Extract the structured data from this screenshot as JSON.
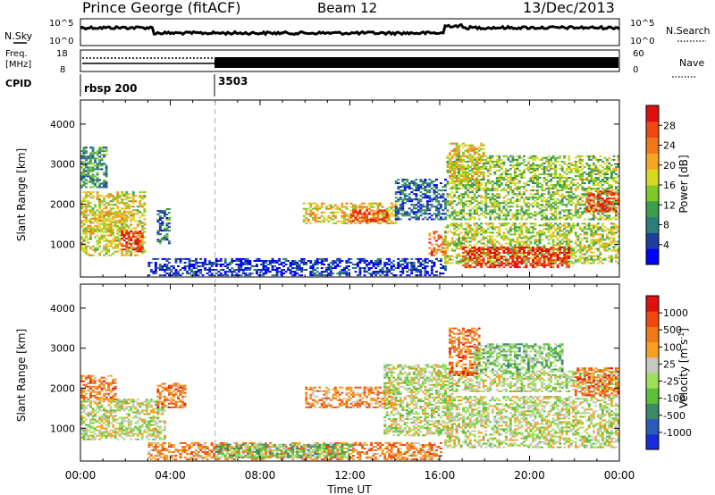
{
  "header": {
    "station": "Prince George (fitACF)",
    "beam": "Beam 12",
    "date": "13/Dec/2013"
  },
  "top_panels": {
    "nsky_label": "N.Sky",
    "nsky_ticks": [
      "10^5",
      "10^0"
    ],
    "nsearch_label": "N.Search",
    "freq_label_line1": "Freq.",
    "freq_label_line2": "[MHz]",
    "freq_ticks": [
      "18",
      "8"
    ],
    "nave_ticks": [
      "60",
      "0"
    ],
    "nave_label": "Nave",
    "cpid_label": "CPID",
    "cpid_segments": [
      {
        "start_hour": 0,
        "label": "rbsp 200"
      },
      {
        "start_hour": 6,
        "label": "3503"
      }
    ]
  },
  "colors": {
    "power": [
      "#0000ff",
      "#1e3ea0",
      "#2e7d7d",
      "#3c9e4a",
      "#7ec828",
      "#d8d820",
      "#f5a623",
      "#f07818",
      "#ee4a10",
      "#e01010"
    ],
    "velocity": [
      "#1a2bd9",
      "#2a5bb8",
      "#3a8a6a",
      "#5cc038",
      "#9ee05a",
      "#c8c8c0",
      "#f5a020",
      "#f07818",
      "#ee4a10",
      "#e01010"
    ]
  },
  "chart_data": [
    {
      "type": "heatmap",
      "title": "",
      "xlabel": "",
      "ylabel": "Slant Range [km]",
      "x_range_hours": [
        0,
        24
      ],
      "ylim": [
        180,
        4600
      ],
      "y_ticks": [
        1000,
        2000,
        3000,
        4000
      ],
      "colorbar": {
        "label": "Power [dB]",
        "range": [
          0,
          32
        ],
        "ticks": [
          4,
          8,
          12,
          16,
          20,
          24,
          28
        ]
      },
      "regions": [
        {
          "t0": 0.0,
          "t1": 2.9,
          "r0": 700,
          "r1": 2300,
          "level": 0.55
        },
        {
          "t0": 1.8,
          "t1": 2.8,
          "r0": 800,
          "r1": 1300,
          "level": 0.92
        },
        {
          "t0": 0.1,
          "t1": 2.0,
          "r0": 1300,
          "r1": 1800,
          "level": 0.6
        },
        {
          "t0": 0.0,
          "t1": 1.2,
          "r0": 2400,
          "r1": 3400,
          "level": 0.3
        },
        {
          "t0": 3.4,
          "t1": 4.0,
          "r0": 1000,
          "r1": 1900,
          "level": 0.25
        },
        {
          "t0": 3.0,
          "t1": 16.2,
          "r0": 200,
          "r1": 650,
          "level": 0.12
        },
        {
          "t0": 9.9,
          "t1": 14.0,
          "r0": 1500,
          "r1": 2000,
          "level": 0.6
        },
        {
          "t0": 12.0,
          "t1": 13.6,
          "r0": 1550,
          "r1": 1850,
          "level": 0.85
        },
        {
          "t0": 14.0,
          "t1": 16.2,
          "r0": 1600,
          "r1": 2600,
          "level": 0.2
        },
        {
          "t0": 15.5,
          "t1": 16.3,
          "r0": 700,
          "r1": 1300,
          "level": 0.8
        },
        {
          "t0": 16.2,
          "t1": 24.0,
          "r0": 500,
          "r1": 1500,
          "level": 0.5
        },
        {
          "t0": 17.0,
          "t1": 21.8,
          "r0": 400,
          "r1": 900,
          "level": 0.92
        },
        {
          "t0": 16.3,
          "t1": 24.0,
          "r0": 1600,
          "r1": 3200,
          "level": 0.45
        },
        {
          "t0": 22.5,
          "t1": 24.0,
          "r0": 1800,
          "r1": 2300,
          "level": 0.9
        },
        {
          "t0": 16.4,
          "t1": 18.0,
          "r0": 2500,
          "r1": 3500,
          "level": 0.6
        }
      ]
    },
    {
      "type": "heatmap",
      "title": "",
      "xlabel": "Time UT",
      "ylabel": "Slant Range [km]",
      "x_range_hours": [
        0,
        24
      ],
      "x_ticks": [
        "00:00",
        "04:00",
        "08:00",
        "12:00",
        "16:00",
        "20:00",
        "00:00"
      ],
      "ylim": [
        180,
        4600
      ],
      "y_ticks": [
        1000,
        2000,
        3000,
        4000
      ],
      "colorbar": {
        "label": "Velocity [m s^-1]",
        "ticks": [
          "1000",
          "500",
          "100",
          "25",
          "-25",
          "-100",
          "-500",
          "-1000"
        ]
      },
      "regions": [
        {
          "t0": 0.0,
          "t1": 3.8,
          "r0": 700,
          "r1": 1700,
          "level": 0.5
        },
        {
          "t0": 0.0,
          "t1": 1.6,
          "r0": 1700,
          "r1": 2300,
          "level": 0.75
        },
        {
          "t0": 3.4,
          "t1": 4.6,
          "r0": 1500,
          "r1": 2100,
          "level": 0.75
        },
        {
          "t0": 3.0,
          "t1": 16.0,
          "r0": 200,
          "r1": 650,
          "level": 0.72
        },
        {
          "t0": 6.0,
          "t1": 12.0,
          "r0": 250,
          "r1": 600,
          "level": 0.38
        },
        {
          "t0": 10.0,
          "t1": 14.0,
          "r0": 1500,
          "r1": 2000,
          "level": 0.7
        },
        {
          "t0": 13.5,
          "t1": 16.5,
          "r0": 800,
          "r1": 2600,
          "level": 0.5
        },
        {
          "t0": 16.2,
          "t1": 24.0,
          "r0": 500,
          "r1": 1800,
          "level": 0.5
        },
        {
          "t0": 16.5,
          "t1": 24.0,
          "r0": 1900,
          "r1": 2400,
          "level": 0.5
        },
        {
          "t0": 16.4,
          "t1": 17.8,
          "r0": 2300,
          "r1": 3500,
          "level": 0.78
        },
        {
          "t0": 22.0,
          "t1": 24.0,
          "r0": 1800,
          "r1": 2500,
          "level": 0.78
        },
        {
          "t0": 17.5,
          "t1": 21.5,
          "r0": 2400,
          "r1": 3100,
          "level": 0.4
        }
      ]
    }
  ]
}
